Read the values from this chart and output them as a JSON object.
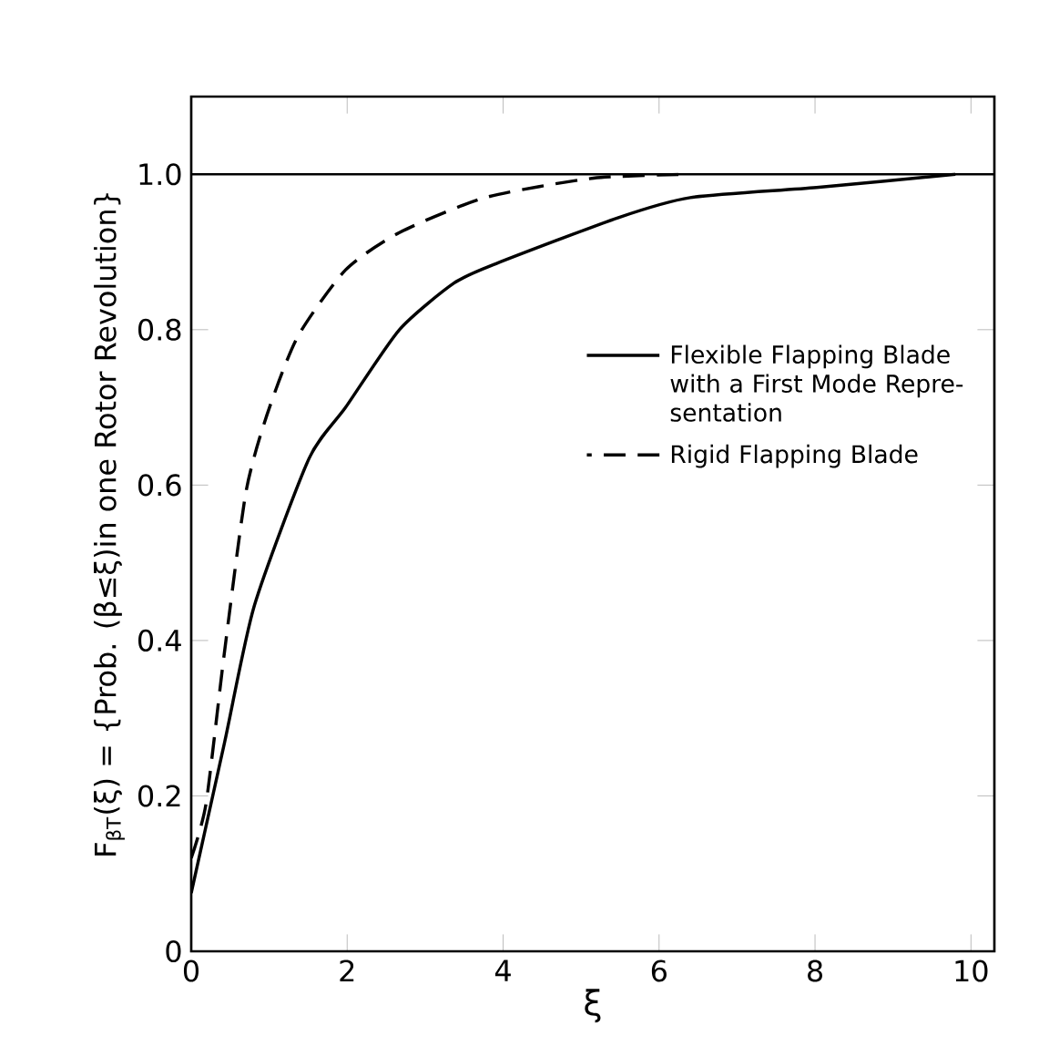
{
  "chart_data": {
    "type": "line",
    "xlabel": "ξ",
    "ylabel": "F$_{βT}$(ξ) = {Prob. (β≤ξ)in one Rotor Revolution}",
    "xlim": [
      0,
      10.3
    ],
    "ylim": [
      0,
      1.1
    ],
    "xticks": [
      0,
      2,
      4,
      6,
      8,
      10
    ],
    "yticks": [
      {
        "value": 0,
        "label": "0"
      },
      {
        "value": 0.2,
        "label": "0.2"
      },
      {
        "value": 0.4,
        "label": "0.4"
      },
      {
        "value": 0.6,
        "label": "0.6"
      },
      {
        "value": 0.8,
        "label": "0.8"
      },
      {
        "value": 1.0,
        "label": "1.0"
      }
    ],
    "grid": false,
    "legend": "right",
    "marker": "none",
    "ref_lines": [
      {
        "axis": "y",
        "value": 1.0,
        "color": "#000000",
        "line_style": "solid"
      }
    ],
    "series": [
      {
        "name": "Flexible Flapping Blade with a First Mode Repre- sentation",
        "color": "#000000",
        "line_style": "solid",
        "x": [
          0,
          0.43,
          0.81,
          1.51,
          1.98,
          2.67,
          3.37,
          3.91,
          5.47,
          6.4,
          8.02,
          9.8
        ],
        "values": [
          0.075,
          0.27,
          0.445,
          0.634,
          0.7,
          0.8,
          0.86,
          0.885,
          0.944,
          0.97,
          0.983,
          1.0
        ]
      },
      {
        "name": "Rigid Flapping Blade",
        "color": "#000000",
        "line_style": "dashed",
        "x": [
          0,
          0.19,
          0.42,
          0.7,
          0.97,
          1.36,
          1.98,
          2.67,
          3.77,
          5.16,
          6.4
        ],
        "values": [
          0.12,
          0.19,
          0.38,
          0.59,
          0.69,
          0.79,
          0.877,
          0.925,
          0.97,
          0.995,
          1.0
        ]
      }
    ]
  }
}
